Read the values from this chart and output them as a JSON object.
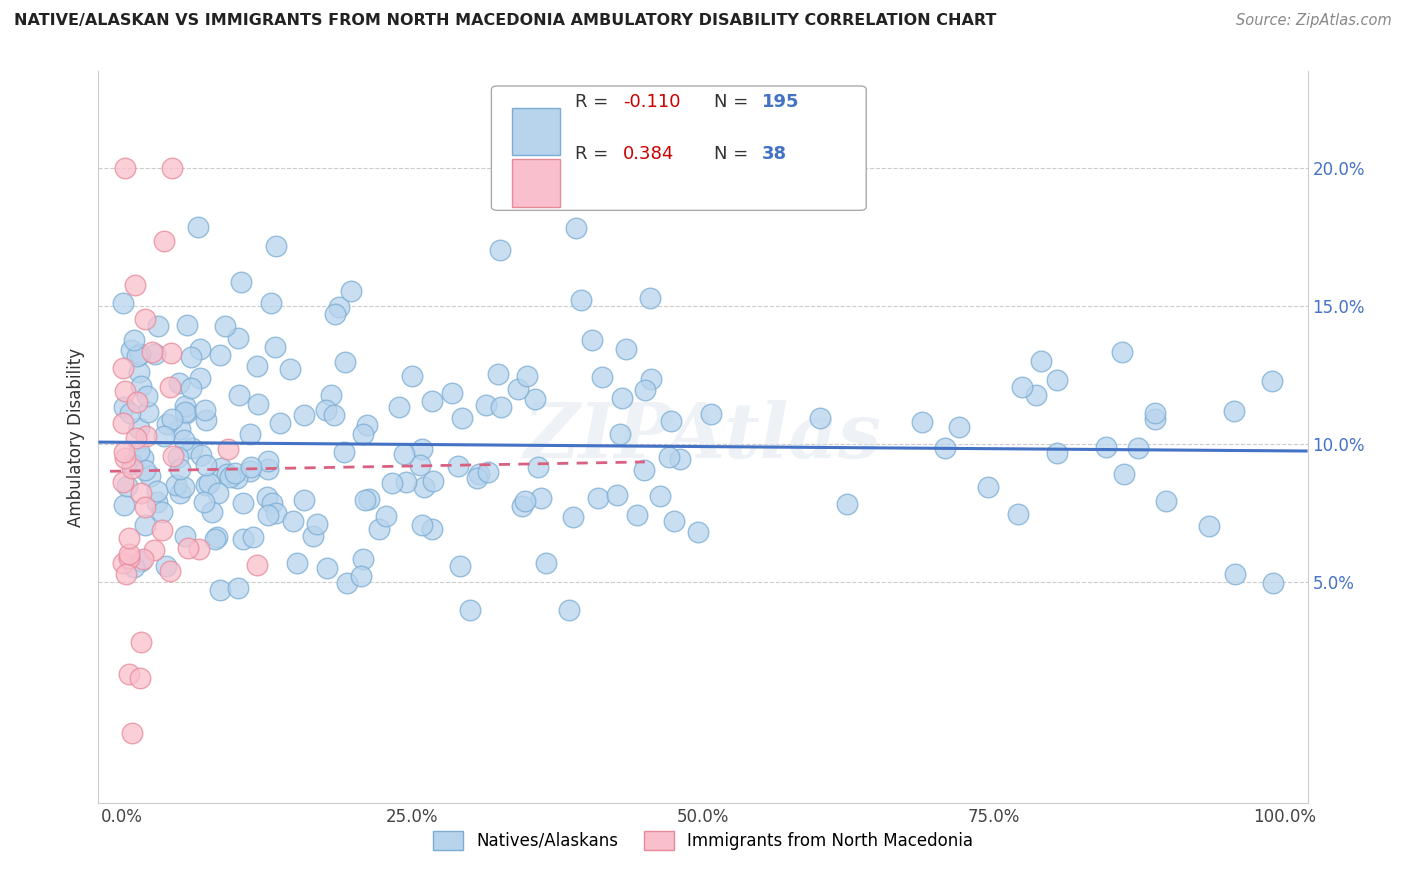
{
  "title": "NATIVE/ALASKAN VS IMMIGRANTS FROM NORTH MACEDONIA AMBULATORY DISABILITY CORRELATION CHART",
  "source": "Source: ZipAtlas.com",
  "ylabel": "Ambulatory Disability",
  "native_R": -0.11,
  "native_N": 195,
  "immigrant_R": 0.384,
  "immigrant_N": 38,
  "native_color": "#b8d4ed",
  "native_edge_color": "#7aadd4",
  "native_line_color": "#4472c4",
  "immigrant_color": "#f9bfcc",
  "immigrant_edge_color": "#e8899a",
  "immigrant_line_color": "#d96080",
  "legend_R_color": "#cc0000",
  "legend_N_color": "#4472c4",
  "title_color": "#222222",
  "source_color": "#888888",
  "background_color": "#ffffff",
  "grid_color": "#cccccc",
  "ytick_color": "#4472c4",
  "xlim": [
    -0.02,
    1.02
  ],
  "ylim": [
    -0.03,
    0.235
  ],
  "yticks": [
    0.05,
    0.1,
    0.15,
    0.2
  ],
  "ytick_labels": [
    "5.0%",
    "10.0%",
    "15.0%",
    "20.0%"
  ],
  "xticks": [
    0.0,
    0.25,
    0.5,
    0.75,
    1.0
  ],
  "xtick_labels": [
    "0.0%",
    "25.0%",
    "50.0%",
    "75.0%",
    "100.0%"
  ],
  "watermark": "ZIPAtlas"
}
